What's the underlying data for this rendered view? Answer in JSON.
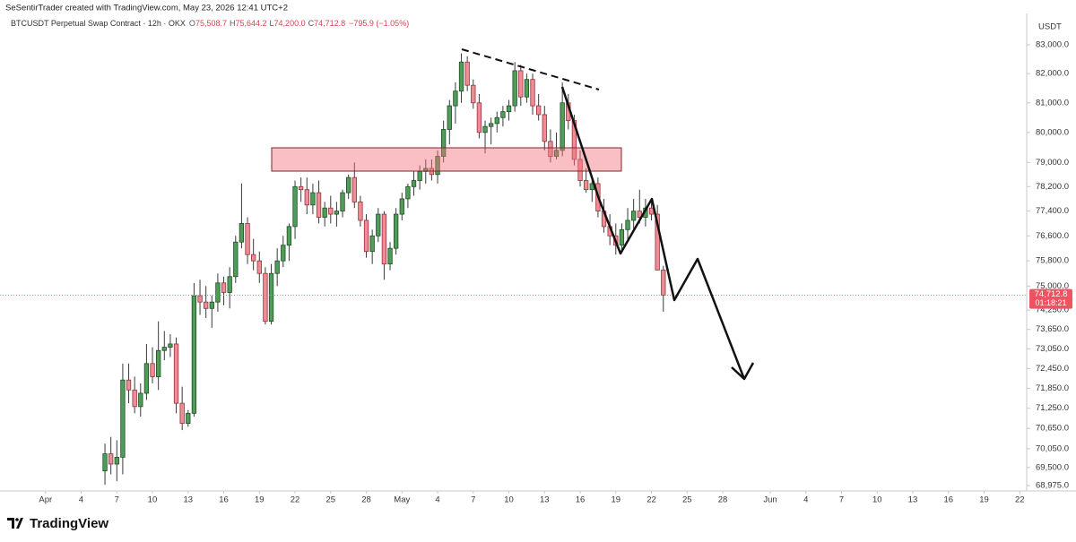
{
  "watermark": "SeSentirTrader created with TradingView.com, May 23, 2026 12:41 UTC+2",
  "brand": "TradingView",
  "chart_data": {
    "type": "candlestick",
    "symbol": "BTCUSDT Perpetual Swap Contract · 12h · OKX",
    "ohlc_legend": [
      {
        "key": "O",
        "value": "75,508.7"
      },
      {
        "key": "H",
        "value": "75,644.2"
      },
      {
        "key": "L",
        "value": "74,200.0"
      },
      {
        "key": "C",
        "value": "74,712.8"
      }
    ],
    "change_label": "−795.9 (−1.05%)",
    "currency": "USDT",
    "price_label": "74,712.8",
    "countdown": "01:18:21",
    "up_color": "#4f9d58",
    "down_color": "#ee8d96",
    "log_scale": true,
    "grid": false,
    "xlim": [
      "2026-03-28T04:00",
      "2026-06-22T14:00"
    ],
    "ylim": [
      68819,
      84099
    ],
    "yticks": [
      {
        "value": 83000,
        "label": "83,000.0"
      },
      {
        "value": 82000,
        "label": "82,000.0"
      },
      {
        "value": 81000,
        "label": "81,000.0"
      },
      {
        "value": 80000,
        "label": "80,000.0"
      },
      {
        "value": 79000,
        "label": "79,000.0"
      },
      {
        "value": 78200,
        "label": "78,200.0"
      },
      {
        "value": 77400,
        "label": "77,400.0"
      },
      {
        "value": 76600,
        "label": "76,600.0"
      },
      {
        "value": 75800,
        "label": "75,800.0"
      },
      {
        "value": 75000,
        "label": "75,000.0"
      },
      {
        "value": 74250,
        "label": "74,250.0"
      },
      {
        "value": 73650,
        "label": "73,650.0"
      },
      {
        "value": 73050,
        "label": "73,050.0"
      },
      {
        "value": 72450,
        "label": "72,450.0"
      },
      {
        "value": 71850,
        "label": "71,850.0"
      },
      {
        "value": 71250,
        "label": "71,250.0"
      },
      {
        "value": 70650,
        "label": "70,650.0"
      },
      {
        "value": 70050,
        "label": "70,050.0"
      },
      {
        "value": 69500,
        "label": "69,500.0"
      },
      {
        "value": 68975,
        "label": "68,975.0"
      }
    ],
    "xticks": [
      {
        "value": "2026-04-01T00:00",
        "label": "Apr"
      },
      {
        "value": "2026-04-04T00:00",
        "label": "4"
      },
      {
        "value": "2026-04-07T00:00",
        "label": "7"
      },
      {
        "value": "2026-04-10T00:00",
        "label": "10"
      },
      {
        "value": "2026-04-13T00:00",
        "label": "13"
      },
      {
        "value": "2026-04-16T00:00",
        "label": "16"
      },
      {
        "value": "2026-04-19T00:00",
        "label": "19"
      },
      {
        "value": "2026-04-22T00:00",
        "label": "22"
      },
      {
        "value": "2026-04-25T00:00",
        "label": "25"
      },
      {
        "value": "2026-04-28T00:00",
        "label": "28"
      },
      {
        "value": "2026-05-01T00:00",
        "label": "May"
      },
      {
        "value": "2026-05-04T00:00",
        "label": "4"
      },
      {
        "value": "2026-05-07T00:00",
        "label": "7"
      },
      {
        "value": "2026-05-10T00:00",
        "label": "10"
      },
      {
        "value": "2026-05-13T00:00",
        "label": "13"
      },
      {
        "value": "2026-05-16T00:00",
        "label": "16"
      },
      {
        "value": "2026-05-19T00:00",
        "label": "19"
      },
      {
        "value": "2026-05-22T00:00",
        "label": "22"
      },
      {
        "value": "2026-05-25T00:00",
        "label": "25"
      },
      {
        "value": "2026-05-28T00:00",
        "label": "28"
      },
      {
        "value": "2026-06-01T00:00",
        "label": "Jun"
      },
      {
        "value": "2026-06-04T00:00",
        "label": "4"
      },
      {
        "value": "2026-06-07T00:00",
        "label": "7"
      },
      {
        "value": "2026-06-10T00:00",
        "label": "10"
      },
      {
        "value": "2026-06-13T00:00",
        "label": "13"
      },
      {
        "value": "2026-06-16T00:00",
        "label": "16"
      },
      {
        "value": "2026-06-19T00:00",
        "label": "19"
      },
      {
        "value": "2026-06-22T00:00",
        "label": "22"
      }
    ],
    "x": [
      "2026-04-06T00:00",
      "2026-04-06T12:00",
      "2026-04-07T00:00",
      "2026-04-07T12:00",
      "2026-04-08T00:00",
      "2026-04-08T12:00",
      "2026-04-09T00:00",
      "2026-04-09T12:00",
      "2026-04-10T00:00",
      "2026-04-10T12:00",
      "2026-04-11T00:00",
      "2026-04-11T12:00",
      "2026-04-12T00:00",
      "2026-04-12T12:00",
      "2026-04-13T00:00",
      "2026-04-13T12:00",
      "2026-04-14T00:00",
      "2026-04-14T12:00",
      "2026-04-15T00:00",
      "2026-04-15T12:00",
      "2026-04-16T00:00",
      "2026-04-16T12:00",
      "2026-04-17T00:00",
      "2026-04-17T12:00",
      "2026-04-18T00:00",
      "2026-04-18T12:00",
      "2026-04-19T00:00",
      "2026-04-19T12:00",
      "2026-04-20T00:00",
      "2026-04-20T12:00",
      "2026-04-21T00:00",
      "2026-04-21T12:00",
      "2026-04-22T00:00",
      "2026-04-22T12:00",
      "2026-04-23T00:00",
      "2026-04-23T12:00",
      "2026-04-24T00:00",
      "2026-04-24T12:00",
      "2026-04-25T00:00",
      "2026-04-25T12:00",
      "2026-04-26T00:00",
      "2026-04-26T12:00",
      "2026-04-27T00:00",
      "2026-04-27T12:00",
      "2026-04-28T00:00",
      "2026-04-28T12:00",
      "2026-04-29T00:00",
      "2026-04-29T12:00",
      "2026-04-30T00:00",
      "2026-04-30T12:00",
      "2026-05-01T00:00",
      "2026-05-01T12:00",
      "2026-05-02T00:00",
      "2026-05-02T12:00",
      "2026-05-03T00:00",
      "2026-05-03T12:00",
      "2026-05-04T00:00",
      "2026-05-04T12:00",
      "2026-05-05T00:00",
      "2026-05-05T12:00",
      "2026-05-06T00:00",
      "2026-05-06T12:00",
      "2026-05-07T00:00",
      "2026-05-07T12:00",
      "2026-05-08T00:00",
      "2026-05-08T12:00",
      "2026-05-09T00:00",
      "2026-05-09T12:00",
      "2026-05-10T00:00",
      "2026-05-10T12:00",
      "2026-05-11T00:00",
      "2026-05-11T12:00",
      "2026-05-12T00:00",
      "2026-05-12T12:00",
      "2026-05-13T00:00",
      "2026-05-13T12:00",
      "2026-05-14T00:00",
      "2026-05-14T12:00",
      "2026-05-15T00:00",
      "2026-05-15T12:00",
      "2026-05-16T00:00",
      "2026-05-16T12:00",
      "2026-05-17T00:00",
      "2026-05-17T12:00",
      "2026-05-18T00:00",
      "2026-05-18T12:00",
      "2026-05-19T00:00",
      "2026-05-19T12:00",
      "2026-05-20T00:00",
      "2026-05-20T12:00",
      "2026-05-21T00:00",
      "2026-05-21T12:00",
      "2026-05-22T00:00",
      "2026-05-22T12:00",
      "2026-05-23T00:00"
    ],
    "open": [
      69400,
      69900,
      69600,
      69800,
      72100,
      71800,
      71300,
      71700,
      72600,
      72200,
      73000,
      73100,
      73200,
      71400,
      70800,
      71100,
      74700,
      74500,
      74300,
      74500,
      75100,
      74800,
      75300,
      76400,
      77000,
      76000,
      75800,
      75400,
      73900,
      75400,
      75800,
      76300,
      76900,
      78200,
      78100,
      77600,
      78000,
      77200,
      77500,
      77300,
      77400,
      78000,
      78500,
      77700,
      77100,
      76100,
      76600,
      77300,
      75700,
      76200,
      77300,
      77800,
      78200,
      78400,
      78700,
      78800,
      78600,
      79200,
      80100,
      80900,
      81400,
      82400,
      81600,
      81000,
      80000,
      80200,
      80300,
      80500,
      80700,
      80900,
      82100,
      81200,
      81800,
      80900,
      80600,
      79700,
      79200,
      79400,
      81000,
      80400,
      79100,
      78400,
      78100,
      78300,
      77400,
      76900,
      76600,
      76300,
      76800,
      77100,
      77400,
      77200,
      77500,
      77300,
      75508.7
    ],
    "high": [
      70200,
      70400,
      70300,
      72600,
      72600,
      72200,
      72000,
      73200,
      73100,
      73900,
      73600,
      73500,
      73400,
      71900,
      71200,
      75100,
      75200,
      75000,
      74700,
      75400,
      75300,
      75600,
      76600,
      78300,
      77200,
      76500,
      76100,
      75600,
      75700,
      76200,
      76600,
      77000,
      78400,
      78500,
      78500,
      78300,
      78400,
      77700,
      77900,
      77700,
      78100,
      78600,
      79000,
      77900,
      77300,
      76800,
      77500,
      77400,
      76400,
      77500,
      78000,
      78300,
      78700,
      78900,
      79100,
      79100,
      79400,
      80400,
      81100,
      81700,
      82700,
      82600,
      81800,
      81300,
      80400,
      80500,
      80700,
      80900,
      81100,
      82400,
      82300,
      82000,
      82000,
      81300,
      80900,
      80100,
      80000,
      81700,
      81300,
      80600,
      79400,
      78800,
      78500,
      78500,
      77800,
      77300,
      77000,
      77000,
      77500,
      77800,
      78100,
      77800,
      77700,
      77600,
      75644.2
    ],
    "low": [
      69000,
      69300,
      69100,
      69300,
      71400,
      71100,
      71000,
      71500,
      72000,
      71800,
      72700,
      72800,
      71100,
      70600,
      70700,
      71000,
      74100,
      74000,
      73700,
      74200,
      74400,
      74300,
      75100,
      76200,
      75700,
      75500,
      75100,
      73800,
      73800,
      75000,
      75600,
      75800,
      76500,
      77700,
      77300,
      77300,
      77000,
      76900,
      77000,
      76900,
      77200,
      77800,
      77500,
      76900,
      75900,
      75700,
      76400,
      75200,
      75500,
      76000,
      77100,
      77500,
      77900,
      78100,
      78300,
      78400,
      78300,
      79000,
      79600,
      80300,
      81000,
      81400,
      80800,
      79800,
      79300,
      79600,
      80000,
      80200,
      80400,
      80700,
      80900,
      81000,
      80600,
      80400,
      79400,
      79000,
      79100,
      79200,
      80100,
      78900,
      78200,
      78000,
      77700,
      77200,
      76700,
      76300,
      76000,
      76100,
      76500,
      76800,
      77000,
      76900,
      77100,
      75500,
      74200
    ],
    "close": [
      69900,
      69600,
      69800,
      72100,
      71800,
      71300,
      71700,
      72600,
      72200,
      73000,
      73100,
      73200,
      71400,
      70800,
      71100,
      74700,
      74500,
      74300,
      74500,
      75100,
      74800,
      75300,
      76400,
      77000,
      76000,
      75800,
      75400,
      73900,
      75400,
      75800,
      76300,
      76900,
      78200,
      78100,
      77600,
      78000,
      77200,
      77500,
      77300,
      77400,
      78000,
      78500,
      77700,
      77100,
      76100,
      76600,
      77300,
      75700,
      76200,
      77300,
      77800,
      78200,
      78400,
      78700,
      78800,
      78600,
      79200,
      80100,
      80900,
      81400,
      82400,
      81600,
      81000,
      80000,
      80200,
      80300,
      80500,
      80700,
      80900,
      82100,
      81200,
      81800,
      80900,
      80600,
      79700,
      79200,
      79400,
      81000,
      80400,
      79100,
      78400,
      78100,
      78300,
      77400,
      76900,
      76600,
      76300,
      76800,
      77100,
      77400,
      77200,
      77500,
      77300,
      75508.7,
      74712.8
    ]
  }
}
